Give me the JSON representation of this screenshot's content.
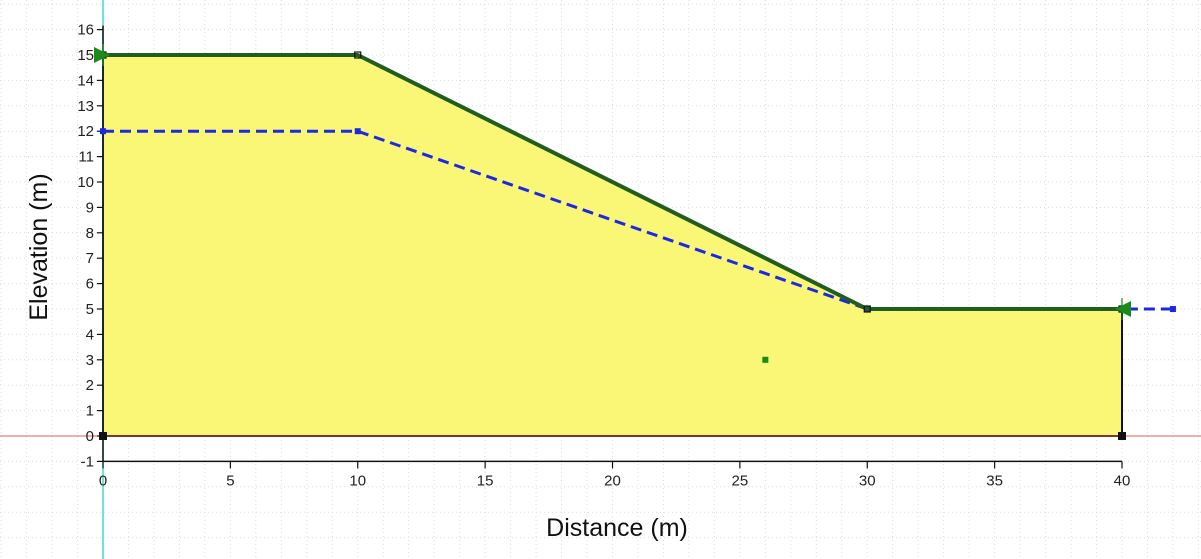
{
  "chart_data": {
    "type": "cross-section",
    "xlabel": "Distance (m)",
    "ylabel": "Elevation (m)",
    "xlim": [
      0,
      40
    ],
    "ylim": [
      -1,
      16
    ],
    "x_ticks": [
      0,
      5,
      10,
      15,
      20,
      25,
      30,
      35,
      40
    ],
    "y_ticks": [
      -1,
      0,
      1,
      2,
      3,
      4,
      5,
      6,
      7,
      8,
      9,
      10,
      11,
      12,
      13,
      14,
      15,
      16
    ],
    "grid": "dotted",
    "region": {
      "fill": "#f9f775",
      "outline": "#111111",
      "points": [
        [
          0,
          0
        ],
        [
          0,
          15
        ],
        [
          10,
          15
        ],
        [
          30,
          5
        ],
        [
          40,
          5
        ],
        [
          40,
          0
        ]
      ]
    },
    "ground_surface": {
      "color": "#1f5e1f",
      "points": [
        [
          0,
          15
        ],
        [
          10,
          15
        ],
        [
          30,
          5
        ],
        [
          40,
          5
        ]
      ]
    },
    "water_table": {
      "color": "#1c28e6",
      "style": "dashed",
      "points": [
        [
          0,
          12
        ],
        [
          10,
          12
        ],
        [
          30,
          5
        ],
        [
          42,
          5
        ]
      ]
    },
    "vertices": [
      [
        0,
        0
      ],
      [
        40,
        0
      ]
    ],
    "point_marker": {
      "x": 26,
      "y": 3,
      "color": "#1a8a1a"
    },
    "reference_lines": {
      "vertical_x": 0,
      "vertical_color": "#3ddcc8",
      "horizontal_y": 0,
      "horizontal_color": "#e85a5a"
    },
    "slip_markers": [
      {
        "x": 0,
        "y": 15,
        "direction": "right",
        "color": "#1a8a1a"
      },
      {
        "x": 40,
        "y": 5,
        "direction": "left",
        "color": "#1a8a1a"
      }
    ]
  }
}
